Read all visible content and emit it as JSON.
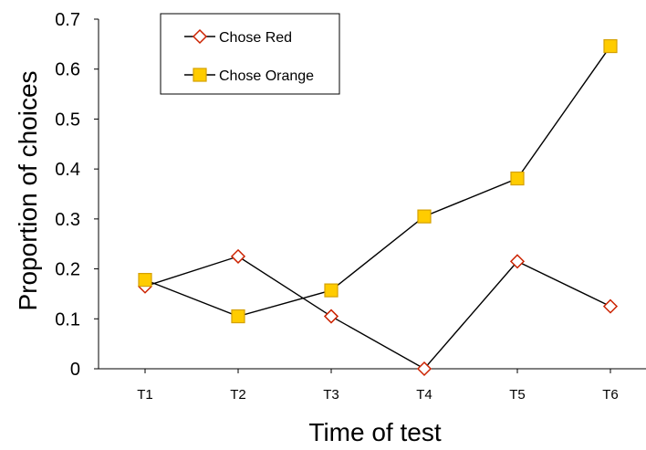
{
  "chart_data": {
    "type": "line",
    "categories": [
      "T1",
      "T2",
      "T3",
      "T4",
      "T5",
      "T6"
    ],
    "series": [
      {
        "name": "Chose Red",
        "values": [
          0.165,
          0.225,
          0.105,
          0.0,
          0.215,
          0.125
        ],
        "marker": "diamond",
        "color": "#cc2200",
        "fill": "#ffffff"
      },
      {
        "name": "Chose Orange",
        "values": [
          0.178,
          0.105,
          0.157,
          0.305,
          0.381,
          0.646
        ],
        "marker": "square",
        "color": "#d4a000",
        "fill": "#ffcc00"
      }
    ],
    "title": "",
    "xlabel": "Time of test",
    "ylabel": "Proportion of choices",
    "ylim": [
      0,
      0.7
    ],
    "yticks": [
      "0",
      "0.1",
      "0.2",
      "0.3",
      "0.4",
      "0.5",
      "0.6",
      "0.7"
    ],
    "grid": false,
    "legend_position": "top-left",
    "line_color": "#000000"
  }
}
